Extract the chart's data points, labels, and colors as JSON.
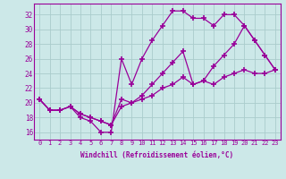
{
  "background_color": "#cce8e8",
  "grid_color": "#aacccc",
  "line_color": "#990099",
  "marker": "+",
  "xlabel": "Windchill (Refroidissement éolien,°C)",
  "xlim": [
    -0.5,
    23.5
  ],
  "ylim": [
    15,
    33.5
  ],
  "yticks": [
    16,
    18,
    20,
    22,
    24,
    26,
    28,
    30,
    32
  ],
  "xticks": [
    0,
    1,
    2,
    3,
    4,
    5,
    6,
    7,
    8,
    9,
    10,
    11,
    12,
    13,
    14,
    15,
    16,
    17,
    18,
    19,
    20,
    21,
    22,
    23
  ],
  "line1_x": [
    0,
    1,
    2,
    3,
    4,
    5,
    6,
    7,
    8,
    9,
    10,
    11,
    12,
    13,
    14,
    15,
    16,
    17,
    18,
    19,
    20,
    21,
    22,
    23
  ],
  "line1_y": [
    20.5,
    19.0,
    19.0,
    19.5,
    18.0,
    17.5,
    16.0,
    16.0,
    26.0,
    22.5,
    26.0,
    28.5,
    30.5,
    32.5,
    32.5,
    31.5,
    31.5,
    30.5,
    32.0,
    32.0,
    30.5,
    28.5,
    26.5,
    24.5
  ],
  "line2_x": [
    0,
    1,
    2,
    3,
    4,
    5,
    6,
    7,
    8,
    9,
    10,
    11,
    12,
    13,
    14,
    15,
    16,
    17,
    18,
    19,
    20,
    21,
    22,
    23
  ],
  "line2_y": [
    20.5,
    19.0,
    19.0,
    19.5,
    18.5,
    18.0,
    17.5,
    17.0,
    20.5,
    20.0,
    21.0,
    22.5,
    24.0,
    25.5,
    27.0,
    22.5,
    23.0,
    25.0,
    26.5,
    28.0,
    30.5,
    28.5,
    26.5,
    24.5
  ],
  "line3_x": [
    0,
    1,
    2,
    3,
    4,
    5,
    6,
    7,
    8,
    9,
    10,
    11,
    12,
    13,
    14,
    15,
    16,
    17,
    18,
    19,
    20,
    21,
    22,
    23
  ],
  "line3_y": [
    20.5,
    19.0,
    19.0,
    19.5,
    18.5,
    18.0,
    17.5,
    17.0,
    19.5,
    20.0,
    20.5,
    21.0,
    22.0,
    22.5,
    23.5,
    22.5,
    23.0,
    22.5,
    23.5,
    24.0,
    24.5,
    24.0,
    24.0,
    24.5
  ]
}
